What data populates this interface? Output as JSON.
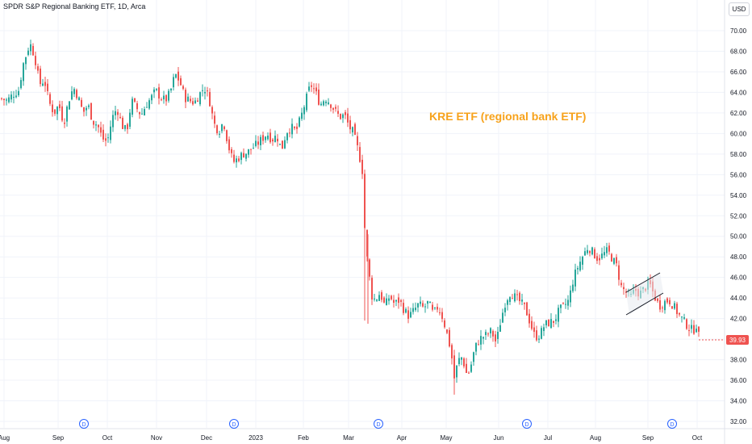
{
  "title": "SPDR S&P Regional Banking ETF, 1D, Arca",
  "currency": "USD",
  "annotation": "KRE ETF (regional bank ETF)",
  "colors": {
    "up": "#26a69a",
    "down": "#ef5350",
    "grid": "#f0f3fa",
    "axis_text": "#131722",
    "annotation": "#f7a21b",
    "price_tag": "#ef5350",
    "dividend": "#2962ff"
  },
  "chart_data": {
    "type": "candlestick",
    "ylim": [
      32.0,
      71.0
    ],
    "y_ticks": [
      "70.00",
      "68.00",
      "66.00",
      "64.00",
      "62.00",
      "60.00",
      "58.00",
      "56.00",
      "54.00",
      "52.00",
      "50.00",
      "48.00",
      "46.00",
      "44.00",
      "42.00",
      "40.00",
      "38.00",
      "36.00",
      "34.00",
      "32.00"
    ],
    "x_labels": [
      "Aug",
      "Sep",
      "Oct",
      "Nov",
      "Dec",
      "2023",
      "Feb",
      "Mar",
      "Apr",
      "May",
      "Jun",
      "Jul",
      "Aug",
      "Sep",
      "Oct"
    ],
    "last_price": "39.93",
    "dividend_marker": "D",
    "dividend_markers": [
      1,
      2,
      3,
      4,
      5
    ],
    "close_path": [
      [
        0,
        63.4
      ],
      [
        8,
        63.2
      ],
      [
        15,
        63.8
      ],
      [
        22,
        64.2
      ],
      [
        28,
        66.8
      ],
      [
        36,
        68.8
      ],
      [
        42,
        67.5
      ],
      [
        48,
        64.8
      ],
      [
        54,
        65.2
      ],
      [
        60,
        63.0
      ],
      [
        66,
        62.0
      ],
      [
        72,
        62.8
      ],
      [
        78,
        61.0
      ],
      [
        84,
        63.2
      ],
      [
        90,
        64.5
      ],
      [
        96,
        63.5
      ],
      [
        102,
        62.0
      ],
      [
        108,
        62.8
      ],
      [
        114,
        61.2
      ],
      [
        120,
        60.8
      ],
      [
        126,
        59.5
      ],
      [
        132,
        59.2
      ],
      [
        138,
        61.5
      ],
      [
        144,
        62.5
      ],
      [
        150,
        60.8
      ],
      [
        156,
        60.2
      ],
      [
        162,
        63.2
      ],
      [
        168,
        62.5
      ],
      [
        174,
        61.8
      ],
      [
        180,
        62.8
      ],
      [
        186,
        63.4
      ],
      [
        192,
        64.2
      ],
      [
        198,
        63.5
      ],
      [
        204,
        63.2
      ],
      [
        210,
        64.0
      ],
      [
        216,
        65.8
      ],
      [
        222,
        65.0
      ],
      [
        228,
        63.5
      ],
      [
        234,
        63.2
      ],
      [
        240,
        63.0
      ],
      [
        246,
        63.8
      ],
      [
        252,
        64.5
      ],
      [
        258,
        63.5
      ],
      [
        264,
        61.0
      ],
      [
        270,
        60.2
      ],
      [
        276,
        61.2
      ],
      [
        282,
        58.8
      ],
      [
        288,
        57.2
      ],
      [
        294,
        57.6
      ],
      [
        300,
        58.0
      ],
      [
        306,
        58.2
      ],
      [
        312,
        58.6
      ],
      [
        318,
        59.0
      ],
      [
        324,
        59.5
      ],
      [
        330,
        60.0
      ],
      [
        336,
        59.4
      ],
      [
        342,
        59.8
      ],
      [
        348,
        58.4
      ],
      [
        354,
        60.2
      ],
      [
        360,
        60.6
      ],
      [
        366,
        60.2
      ],
      [
        372,
        61.6
      ],
      [
        378,
        63.2
      ],
      [
        384,
        64.8
      ],
      [
        390,
        64.0
      ],
      [
        396,
        62.8
      ],
      [
        402,
        63.5
      ],
      [
        408,
        63.0
      ],
      [
        414,
        62.2
      ],
      [
        420,
        61.6
      ],
      [
        426,
        61.8
      ],
      [
        432,
        60.6
      ],
      [
        436,
        60.2
      ],
      [
        440,
        59.2
      ],
      [
        444,
        58.0
      ],
      [
        448,
        56.4
      ],
      [
        450,
        52.0
      ],
      [
        453,
        48.5
      ],
      [
        456,
        46.5
      ],
      [
        460,
        44.2
      ],
      [
        464,
        43.8
      ],
      [
        470,
        44.5
      ],
      [
        476,
        43.2
      ],
      [
        482,
        44.2
      ],
      [
        488,
        43.4
      ],
      [
        494,
        43.8
      ],
      [
        500,
        42.8
      ],
      [
        506,
        42.2
      ],
      [
        512,
        42.8
      ],
      [
        518,
        43.4
      ],
      [
        524,
        43.0
      ],
      [
        530,
        43.6
      ],
      [
        536,
        42.4
      ],
      [
        542,
        43.2
      ],
      [
        548,
        42.0
      ],
      [
        554,
        40.2
      ],
      [
        558,
        38.8
      ],
      [
        562,
        36.2
      ],
      [
        566,
        37.6
      ],
      [
        570,
        38.4
      ],
      [
        574,
        37.6
      ],
      [
        578,
        36.4
      ],
      [
        582,
        37.2
      ],
      [
        586,
        38.6
      ],
      [
        590,
        39.6
      ],
      [
        596,
        40.2
      ],
      [
        602,
        40.4
      ],
      [
        608,
        40.8
      ],
      [
        614,
        39.6
      ],
      [
        620,
        42.0
      ],
      [
        626,
        43.8
      ],
      [
        632,
        44.6
      ],
      [
        638,
        44.0
      ],
      [
        644,
        43.6
      ],
      [
        650,
        43.0
      ],
      [
        656,
        41.6
      ],
      [
        662,
        40.2
      ],
      [
        668,
        40.4
      ],
      [
        674,
        41.4
      ],
      [
        680,
        41.6
      ],
      [
        686,
        41.8
      ],
      [
        692,
        42.8
      ],
      [
        698,
        43.2
      ],
      [
        704,
        43.8
      ],
      [
        710,
        46.0
      ],
      [
        716,
        47.2
      ],
      [
        722,
        48.2
      ],
      [
        728,
        49.0
      ],
      [
        734,
        48.4
      ],
      [
        740,
        47.8
      ],
      [
        746,
        48.2
      ],
      [
        752,
        48.6
      ],
      [
        758,
        47.8
      ],
      [
        764,
        47.0
      ],
      [
        768,
        45.2
      ],
      [
        774,
        44.6
      ],
      [
        780,
        44.0
      ],
      [
        786,
        44.8
      ],
      [
        792,
        44.4
      ],
      [
        798,
        45.0
      ],
      [
        804,
        45.4
      ],
      [
        810,
        44.2
      ],
      [
        816,
        43.2
      ],
      [
        822,
        43.6
      ],
      [
        828,
        43.8
      ],
      [
        834,
        43.2
      ],
      [
        840,
        42.4
      ],
      [
        846,
        41.8
      ],
      [
        852,
        41.2
      ],
      [
        858,
        40.8
      ],
      [
        862,
        41.4
      ],
      [
        866,
        39.93
      ]
    ]
  }
}
